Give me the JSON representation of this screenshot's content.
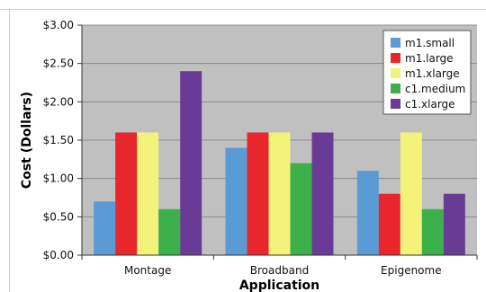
{
  "chart_data": {
    "type": "bar",
    "title": "",
    "xlabel": "Application",
    "ylabel": "Cost (Dollars)",
    "ylim": [
      0,
      3
    ],
    "yticks": [
      "$0.00",
      "$0.50",
      "$1.00",
      "$1.50",
      "$2.00",
      "$2.50",
      "$3.00"
    ],
    "ytick_values": [
      0,
      0.5,
      1,
      1.5,
      2,
      2.5,
      3
    ],
    "categories": [
      "Montage",
      "Broadband",
      "Epigenome"
    ],
    "grid": true,
    "legend_position": "top-right",
    "series": [
      {
        "name": "m1.small",
        "color": "#5b9bd5",
        "values": [
          0.7,
          1.4,
          1.1
        ]
      },
      {
        "name": "m1.large",
        "color": "#e8262b",
        "values": [
          1.6,
          1.6,
          0.8
        ]
      },
      {
        "name": "m1.xlarge",
        "color": "#f4f27a",
        "values": [
          1.6,
          1.6,
          1.6
        ]
      },
      {
        "name": "c1.medium",
        "color": "#3cb04a",
        "values": [
          0.6,
          1.2,
          0.6
        ]
      },
      {
        "name": "c1.xlarge",
        "color": "#6a3b94",
        "values": [
          2.4,
          1.6,
          0.8
        ]
      }
    ],
    "plot_background": "#c0c0c0"
  }
}
